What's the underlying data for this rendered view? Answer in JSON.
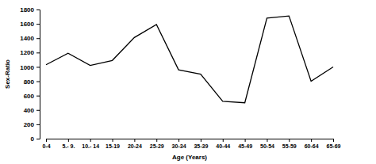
{
  "chart_data": {
    "type": "line",
    "x_label": "Age (Years)",
    "y_label": "Sex-Ratio",
    "categories": [
      "0-4",
      "5.- 9.",
      "10.- 14",
      "15-19",
      "20-24",
      "25-29",
      "30-34",
      "35-39",
      "40-44",
      "45-49",
      "50-54",
      "55-59",
      "60-64",
      "65-69"
    ],
    "values": [
      1030,
      1190,
      1020,
      1090,
      1410,
      1590,
      960,
      900,
      520,
      500,
      1680,
      1710,
      800,
      1000
    ],
    "color": "#000000",
    "ylim": [
      0,
      1800
    ],
    "yticks": [
      0,
      200,
      400,
      600,
      800,
      1000,
      1200,
      1400,
      1600,
      1800
    ],
    "grid": false
  }
}
